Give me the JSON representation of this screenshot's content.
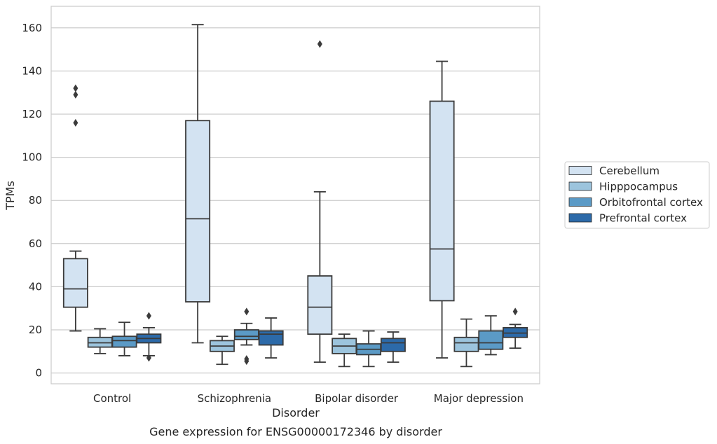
{
  "chart_data": {
    "type": "box",
    "caption": "Gene expression for ENSG00000172346 by disorder",
    "xlabel": "Disorder",
    "ylabel": "TPMs",
    "ylim": [
      -5,
      170
    ],
    "yticks": [
      0,
      20,
      40,
      60,
      80,
      100,
      120,
      140,
      160
    ],
    "grid": "horizontal",
    "legend_position": "right",
    "categories": [
      "Control",
      "Schizophrenia",
      "Bipolar disorder",
      "Major depression"
    ],
    "series": [
      {
        "name": "Cerebellum",
        "color": "#d3e3f2",
        "boxes": [
          {
            "whislo": 19.5,
            "q1": 30.5,
            "med": 39,
            "q3": 53,
            "whishi": 56.5,
            "fliers": [
              116,
              129,
              132
            ]
          },
          {
            "whislo": 14,
            "q1": 33,
            "med": 71.5,
            "q3": 117,
            "whishi": 161.5,
            "fliers": []
          },
          {
            "whislo": 5,
            "q1": 18,
            "med": 30.5,
            "q3": 45,
            "whishi": 84,
            "fliers": [
              152.5
            ]
          },
          {
            "whislo": 7,
            "q1": 33.5,
            "med": 57.5,
            "q3": 126,
            "whishi": 144.5,
            "fliers": []
          }
        ]
      },
      {
        "name": "Hipppocampus",
        "color": "#9cc4dd",
        "boxes": [
          {
            "whislo": 9,
            "q1": 12,
            "med": 14,
            "q3": 16.5,
            "whishi": 20.5,
            "fliers": []
          },
          {
            "whislo": 4,
            "q1": 10,
            "med": 12.5,
            "q3": 15,
            "whishi": 17,
            "fliers": []
          },
          {
            "whislo": 3,
            "q1": 9,
            "med": 12.5,
            "q3": 16,
            "whishi": 18,
            "fliers": []
          },
          {
            "whislo": 3,
            "q1": 10,
            "med": 14,
            "q3": 16.5,
            "whishi": 25,
            "fliers": []
          }
        ]
      },
      {
        "name": "Orbitofrontal cortex",
        "color": "#5b9ac6",
        "boxes": [
          {
            "whislo": 8,
            "q1": 12,
            "med": 15,
            "q3": 17,
            "whishi": 23.5,
            "fliers": []
          },
          {
            "whislo": 13,
            "q1": 15.5,
            "med": 17,
            "q3": 20,
            "whishi": 23,
            "fliers": [
              5.5,
              6.5,
              28.5
            ]
          },
          {
            "whislo": 3,
            "q1": 8.5,
            "med": 11,
            "q3": 13.5,
            "whishi": 19.5,
            "fliers": []
          },
          {
            "whislo": 8.5,
            "q1": 11,
            "med": 14,
            "q3": 19.5,
            "whishi": 26.5,
            "fliers": []
          }
        ]
      },
      {
        "name": "Prefrontal cortex",
        "color": "#2c6aa9",
        "boxes": [
          {
            "whislo": 8,
            "q1": 14,
            "med": 16,
            "q3": 18,
            "whishi": 21,
            "fliers": [
              7,
              26.5
            ]
          },
          {
            "whislo": 7,
            "q1": 13,
            "med": 18,
            "q3": 19.5,
            "whishi": 25.5,
            "fliers": []
          },
          {
            "whislo": 5,
            "q1": 10,
            "med": 14,
            "q3": 16,
            "whishi": 19,
            "fliers": []
          },
          {
            "whislo": 11.5,
            "q1": 16.5,
            "med": 18.5,
            "q3": 21,
            "whishi": 22.5,
            "fliers": [
              28.5
            ]
          }
        ]
      }
    ]
  }
}
